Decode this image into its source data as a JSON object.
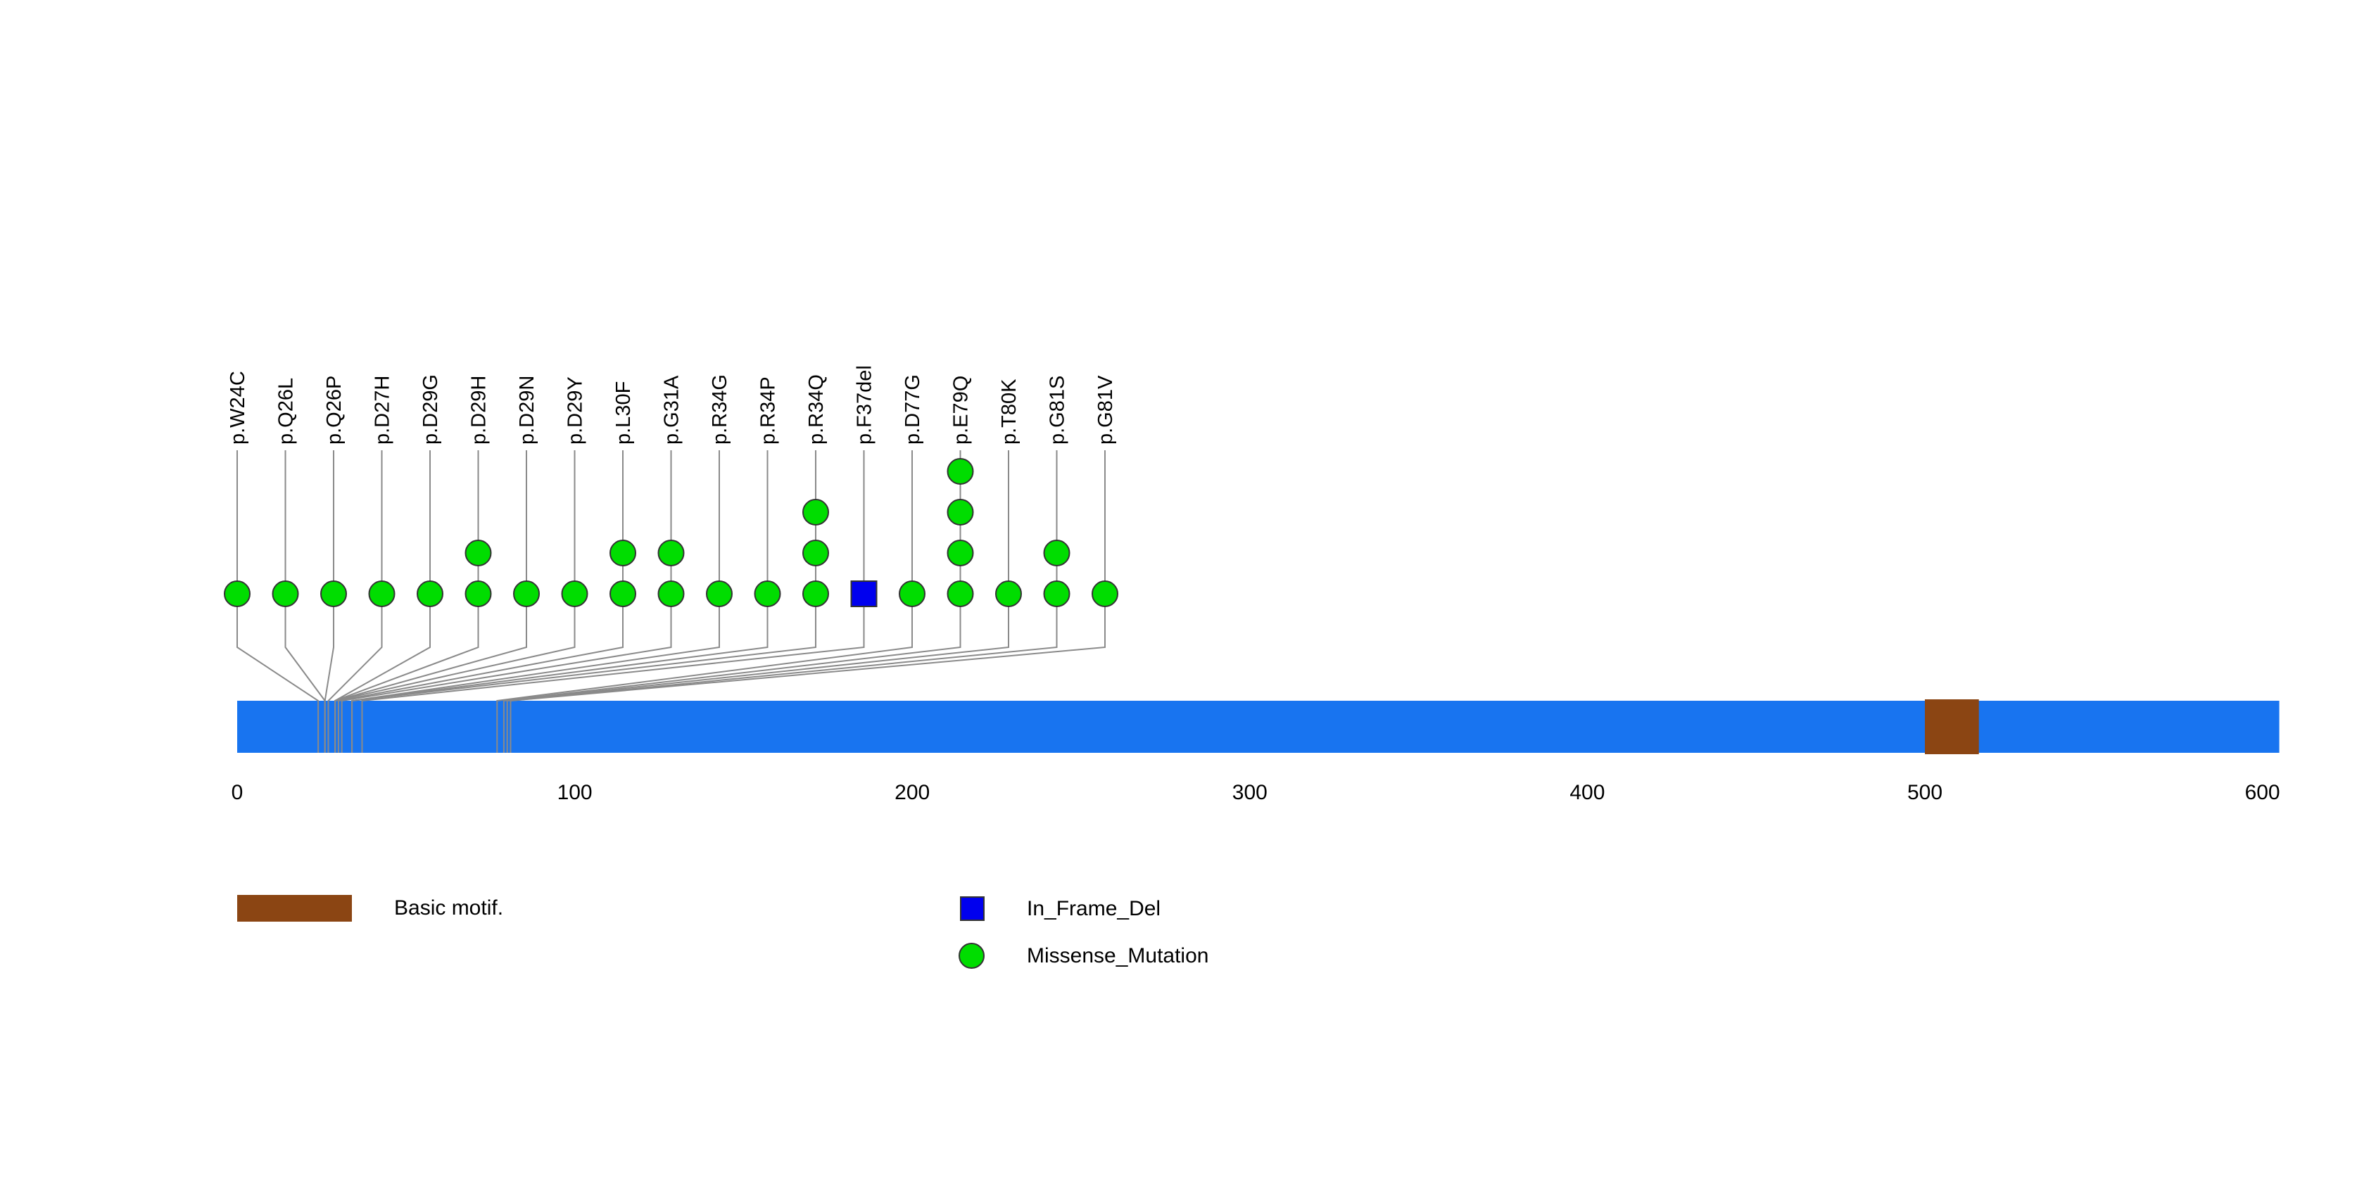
{
  "legend": {
    "domain": {
      "label": "Basic motif.",
      "color": "#8B4513"
    },
    "types": [
      {
        "label": "In_Frame_Del",
        "shape": "square",
        "color": "#0000EE"
      },
      {
        "label": "Missense_Mutation",
        "shape": "circle",
        "color": "#00DD00"
      }
    ]
  },
  "chart_data": {
    "type": "lollipop",
    "title": "",
    "xlabel": "",
    "xlim": [
      0,
      605
    ],
    "x_ticks": [
      0,
      100,
      200,
      300,
      400,
      500,
      600
    ],
    "protein": {
      "start": 0,
      "end": 605,
      "color": "#1874F0"
    },
    "domains": [
      {
        "name": "Basic motif.",
        "start": 500,
        "end": 516,
        "color": "#8B4513"
      }
    ],
    "mutation_types": {
      "Missense_Mutation": {
        "shape": "circle",
        "color": "#00DD00"
      },
      "In_Frame_Del": {
        "shape": "square",
        "color": "#0000EE"
      }
    },
    "colors": {
      "stem": "#8a8a8a",
      "marker_outline": "#333333",
      "text": "#000000"
    },
    "mutations": [
      {
        "label": "p.W24C",
        "position": 24,
        "count": 1,
        "type": "Missense_Mutation"
      },
      {
        "label": "p.Q26L",
        "position": 26,
        "count": 1,
        "type": "Missense_Mutation"
      },
      {
        "label": "p.Q26P",
        "position": 26,
        "count": 1,
        "type": "Missense_Mutation"
      },
      {
        "label": "p.D27H",
        "position": 27,
        "count": 1,
        "type": "Missense_Mutation"
      },
      {
        "label": "p.D29G",
        "position": 29,
        "count": 1,
        "type": "Missense_Mutation"
      },
      {
        "label": "p.D29H",
        "position": 29,
        "count": 2,
        "type": "Missense_Mutation"
      },
      {
        "label": "p.D29N",
        "position": 29,
        "count": 1,
        "type": "Missense_Mutation"
      },
      {
        "label": "p.D29Y",
        "position": 29,
        "count": 1,
        "type": "Missense_Mutation"
      },
      {
        "label": "p.L30F",
        "position": 30,
        "count": 2,
        "type": "Missense_Mutation"
      },
      {
        "label": "p.G31A",
        "position": 31,
        "count": 2,
        "type": "Missense_Mutation"
      },
      {
        "label": "p.R34G",
        "position": 34,
        "count": 1,
        "type": "Missense_Mutation"
      },
      {
        "label": "p.R34P",
        "position": 34,
        "count": 1,
        "type": "Missense_Mutation"
      },
      {
        "label": "p.R34Q",
        "position": 34,
        "count": 3,
        "type": "Missense_Mutation"
      },
      {
        "label": "p.F37del",
        "position": 37,
        "count": 1,
        "type": "In_Frame_Del"
      },
      {
        "label": "p.D77G",
        "position": 77,
        "count": 1,
        "type": "Missense_Mutation"
      },
      {
        "label": "p.E79Q",
        "position": 79,
        "count": 4,
        "type": "Missense_Mutation"
      },
      {
        "label": "p.T80K",
        "position": 80,
        "count": 1,
        "type": "Missense_Mutation"
      },
      {
        "label": "p.G81S",
        "position": 81,
        "count": 2,
        "type": "Missense_Mutation"
      },
      {
        "label": "p.G81V",
        "position": 81,
        "count": 1,
        "type": "Missense_Mutation"
      }
    ]
  }
}
